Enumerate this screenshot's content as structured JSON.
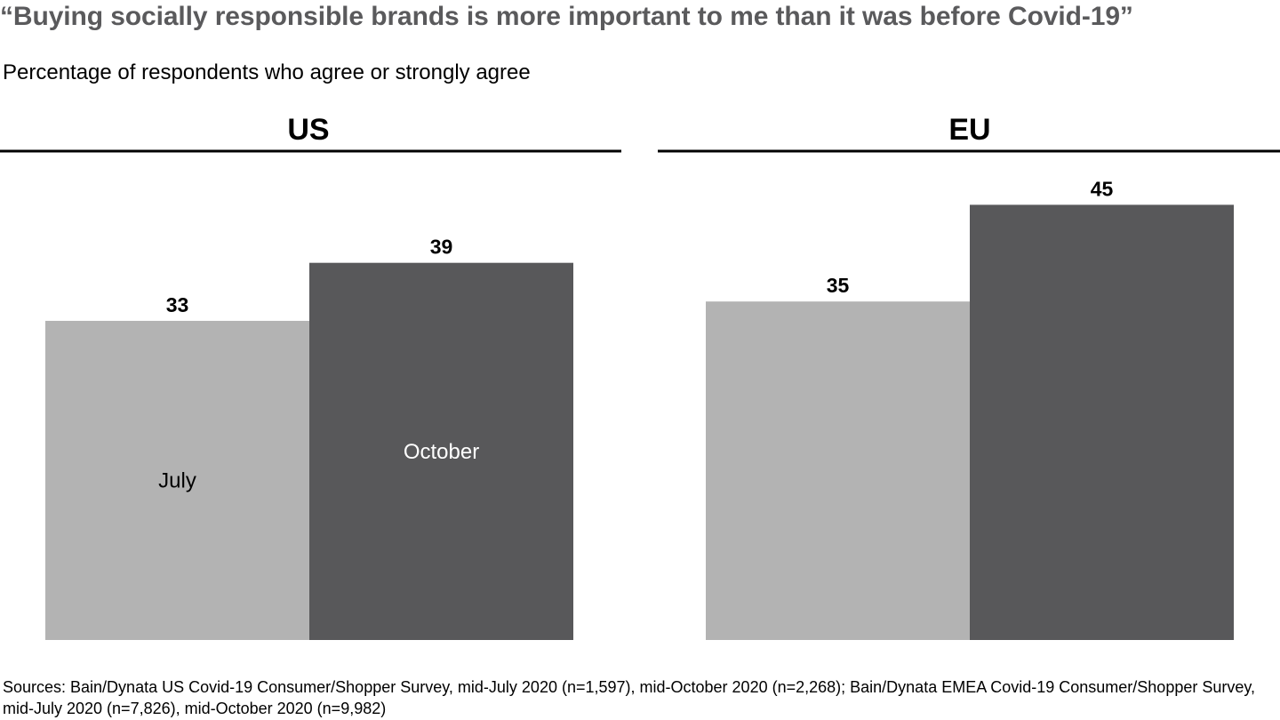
{
  "title": "“Buying socially responsible brands is more important to me than it was before Covid-19”",
  "subtitle": "Percentage of respondents who agree or strongly agree",
  "source": "Sources: Bain/Dynata US Covid-19 Consumer/Shopper Survey, mid-July 2020 (n=1,597), mid-October 2020 (n=2,268); Bain/Dynata EMEA Covid-19 Consumer/Shopper Survey, mid-July 2020 (n=7,826), mid-October 2020 (n=9,982)",
  "colors": {
    "title": "#5a5a5c",
    "july": "#b3b3b3",
    "october": "#58585a",
    "rule": "#000000"
  },
  "chart_data": [
    {
      "type": "bar",
      "panel_title": "US",
      "categories": [
        "July",
        "October"
      ],
      "values": [
        33,
        39
      ],
      "category_labels_shown": true,
      "ylim": [
        0,
        50
      ]
    },
    {
      "type": "bar",
      "panel_title": "EU",
      "categories": [
        "July",
        "October"
      ],
      "values": [
        35,
        45
      ],
      "category_labels_shown": false,
      "ylim": [
        0,
        50
      ]
    }
  ]
}
